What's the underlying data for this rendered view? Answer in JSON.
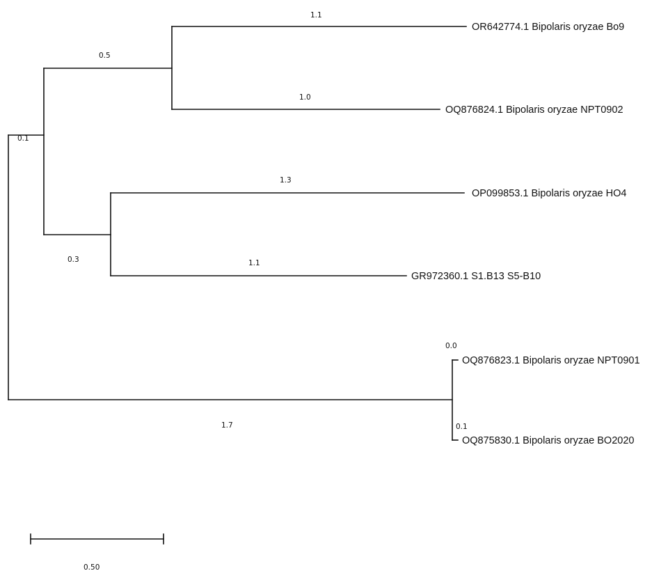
{
  "tree": {
    "taxa": [
      {
        "id": "bo9",
        "label": "OR642774.1 Bipolaris oryzae Bo9"
      },
      {
        "id": "npt0902",
        "label": "OQ876824.1 Bipolaris oryzae NPT0902"
      },
      {
        "id": "ho4",
        "label": "OP099853.1 Bipolaris oryzae HO4"
      },
      {
        "id": "gr972360",
        "label": "GR972360.1 S1.B13 S5-B10"
      },
      {
        "id": "npt0901",
        "label": "OQ876823.1 Bipolaris oryzae NPT0901"
      },
      {
        "id": "bo2020",
        "label": "OQ875830.1 Bipolaris oryzae BO2020"
      }
    ],
    "branch_lengths": {
      "clade_upper": "0.1",
      "clade_bo": "0.5",
      "bo9": "1.1",
      "npt0902": "1.0",
      "clade_ho": "0.3",
      "ho4": "1.3",
      "gr972360": "1.1",
      "clade_npt": "1.7",
      "npt0901": "0.0",
      "bo2020": "0.1"
    },
    "scale_bar": {
      "value": 0.5,
      "label": "0.50"
    }
  }
}
